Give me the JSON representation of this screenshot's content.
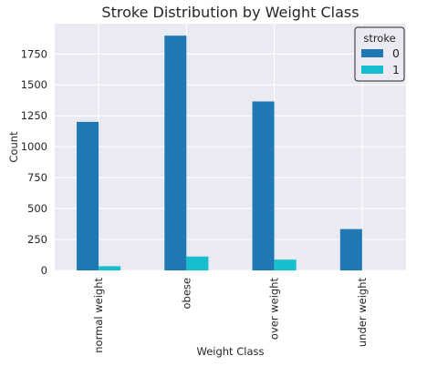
{
  "chart_data": {
    "type": "bar",
    "title": "Stroke Distribution by Weight Class",
    "xlabel": "Weight Class",
    "ylabel": "Count",
    "categories": [
      "normal weight",
      "obese",
      "over weight",
      "under weight"
    ],
    "series": [
      {
        "name": "0",
        "values": [
          1201,
          1898,
          1366,
          334
        ],
        "color": "#1f77b4"
      },
      {
        "name": "1",
        "values": [
          34,
          112,
          87,
          0
        ],
        "color": "#17becf"
      }
    ],
    "ylim": [
      0,
      1995
    ],
    "yticks": [
      0,
      250,
      500,
      750,
      1000,
      1250,
      1500,
      1750
    ],
    "legend": {
      "title": "stroke",
      "placement": "top-right"
    },
    "grid": true,
    "colors": {
      "background": "#eaeaf2",
      "grid": "#ffffff",
      "text": "#262626"
    }
  }
}
